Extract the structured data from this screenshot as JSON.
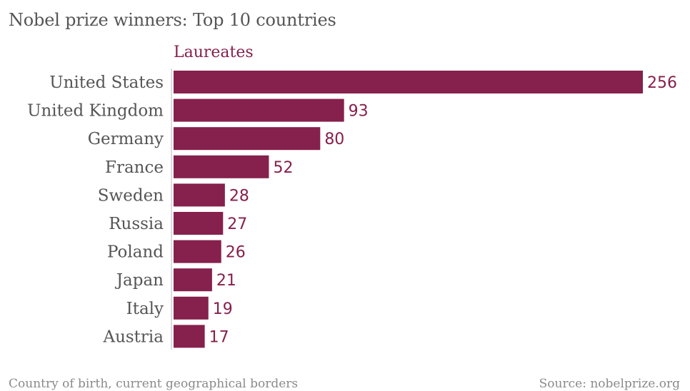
{
  "title": "Nobel prize winners: Top 10 countries",
  "footer": {
    "note": "Country of birth, current geographical borders",
    "source": "Source: nobelprize.org"
  },
  "colors": {
    "bar": "#86204c",
    "series_label": "#86204c",
    "value_label": "#86204c",
    "category_label": "#555555",
    "axis_line": "#bbbbbb"
  },
  "chart_data": {
    "type": "bar",
    "orientation": "horizontal",
    "title": "Nobel prize winners: Top 10 countries",
    "series": [
      {
        "name": "Laureates",
        "values": [
          256,
          93,
          80,
          52,
          28,
          27,
          26,
          21,
          19,
          17
        ]
      }
    ],
    "categories": [
      "United States",
      "United Kingdom",
      "Germany",
      "France",
      "Sweden",
      "Russia",
      "Poland",
      "Japan",
      "Italy",
      "Austria"
    ],
    "xlim": [
      0,
      256
    ],
    "grid": false,
    "data_labels": true
  }
}
